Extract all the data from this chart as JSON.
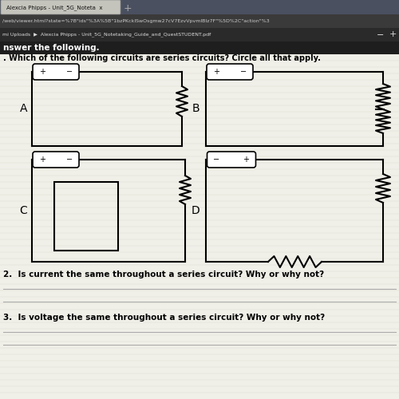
{
  "tab_text": "Alexcia Phipps - Unit_5G_Noteta  x",
  "browser_url": "/web/viewer.html?state=%7B\"ids\"%3A%5B\"1bzPKcklSwOsgmw27cV7EzvVpvmlBIz7F\"%5D%2C\"action\"%3",
  "pdf_path": "mi Uploads  ▶  Alexcia Phipps - Unit_5G_Notetaking_Guide_and_QuestSTUDENT.pdf",
  "header_bar": "nswer the following.",
  "q1_text": ". Which of the following circuits are series circuits? Circle all that apply.",
  "q2_text": "2.  Is current the same throughout a series circuit? Why or why not?",
  "q3_text": "3.  Is voltage the same throughout a series circuit? Why or why not?",
  "bg_page": "#d0cfc8",
  "bg_white": "#f0efe8",
  "tab_bg": "#4a5568",
  "url_bg": "#3a3a3a",
  "pdf_bar_bg": "#2d2d2d",
  "header_bg": "#1a1a1a",
  "lw": 1.5
}
